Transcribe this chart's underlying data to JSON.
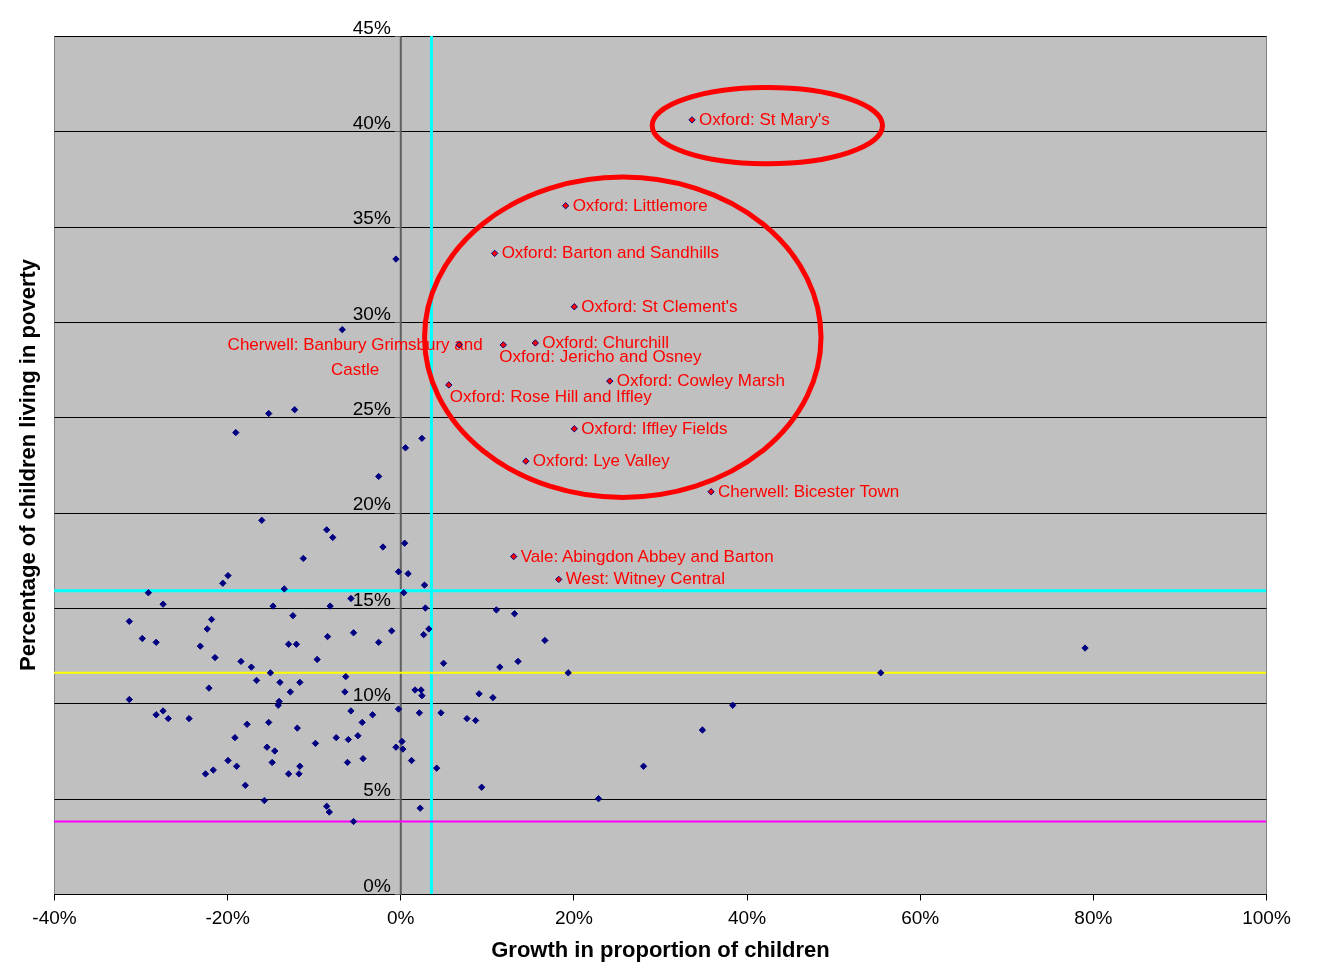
{
  "chart_data": {
    "type": "scatter",
    "xlabel": "Growth in proportion of children",
    "ylabel": "Percentage of children living in poverty",
    "xlim": [
      -40,
      100
    ],
    "ylim": [
      0,
      45
    ],
    "xticks": [
      {
        "value": -40,
        "label": "-40%"
      },
      {
        "value": -20,
        "label": "-20%"
      },
      {
        "value": 0,
        "label": "0%"
      },
      {
        "value": 20,
        "label": "20%"
      },
      {
        "value": 40,
        "label": "40%"
      },
      {
        "value": 60,
        "label": "60%"
      },
      {
        "value": 80,
        "label": "80%"
      },
      {
        "value": 100,
        "label": "100%"
      }
    ],
    "yticks": [
      {
        "value": 0,
        "label": "0%"
      },
      {
        "value": 5,
        "label": "5%"
      },
      {
        "value": 10,
        "label": "10%"
      },
      {
        "value": 15,
        "label": "15%"
      },
      {
        "value": 20,
        "label": "20%"
      },
      {
        "value": 25,
        "label": "25%"
      },
      {
        "value": 30,
        "label": "30%"
      },
      {
        "value": 35,
        "label": "35%"
      },
      {
        "value": 40,
        "label": "40%"
      },
      {
        "value": 45,
        "label": "45%"
      }
    ],
    "grid": "y",
    "marker": "diamond",
    "legend": false,
    "series": [
      {
        "color": "#000080",
        "x": [
          -31.3,
          -31.3,
          -29.8,
          -28.2,
          -29.1,
          -27.4,
          -28.2,
          -27.4,
          -26.8,
          -24.4,
          -23.1,
          -22.3,
          -21.8,
          -21.4,
          -22.1,
          -20.5,
          -19.9,
          -22.5,
          -21.6,
          -19.9,
          -19.1,
          -18.9,
          -19.0,
          -18.4,
          -17.7,
          -17.9,
          -17.2,
          -16.6,
          -16.0,
          -15.7,
          -15.2,
          -15.2,
          -15.4,
          -15.0,
          -14.7,
          -14.8,
          -14.5,
          -14.1,
          -14.0,
          -13.9,
          -13.4,
          -12.9,
          -12.9,
          -12.7,
          -12.4,
          -12.2,
          -12.0,
          -11.9,
          -11.6,
          -11.7,
          -11.6,
          -11.2,
          -9.8,
          -9.6,
          -8.5,
          -8.2,
          -8.5,
          -7.8,
          -8.4,
          -8.1,
          -7.4,
          -6.4,
          -6.3,
          -6.1,
          -6.0,
          -5.7,
          -5.7,
          -5.4,
          -5.4,
          -4.9,
          -4.4,
          -4.3,
          -3.2,
          -2.5,
          -2.5,
          -2.0,
          -1.0,
          -0.5,
          -0.2,
          -0.2,
          0.3,
          0.2,
          0.6,
          0.5,
          0.4,
          0.9,
          -0.5,
          -6.7,
          2.5,
          2.8,
          2.9,
          11.1,
          13.2,
          3.3,
          2.7,
          16.7,
          5.0,
          11.5,
          13.6,
          19.4,
          1.7,
          2.4,
          2.5,
          9.1,
          10.7,
          2.2,
          4.7,
          7.7,
          8.7,
          1.3,
          4.2,
          9.4,
          2.3,
          28.1,
          22.9,
          55.5,
          79.1,
          38.4,
          34.9
        ],
        "values": [
          14.3,
          10.2,
          13.4,
          13.2,
          15.8,
          15.2,
          9.4,
          9.6,
          9.2,
          9.2,
          13.0,
          13.9,
          14.4,
          12.4,
          10.8,
          16.3,
          16.7,
          6.3,
          6.5,
          7.0,
          8.2,
          6.7,
          24.2,
          12.2,
          8.9,
          5.7,
          11.9,
          11.2,
          19.6,
          4.9,
          25.2,
          9.0,
          7.7,
          11.6,
          15.1,
          6.9,
          7.5,
          9.9,
          10.1,
          11.1,
          16.0,
          6.3,
          13.1,
          10.6,
          14.6,
          25.4,
          13.1,
          8.7,
          11.1,
          6.3,
          6.7,
          17.6,
          7.9,
          12.3,
          4.6,
          4.3,
          19.1,
          18.7,
          13.5,
          15.1,
          8.2,
          10.6,
          11.4,
          6.9,
          8.1,
          15.5,
          9.6,
          13.7,
          3.8,
          8.3,
          9.0,
          7.1,
          9.4,
          21.9,
          13.2,
          18.2,
          13.8,
          7.7,
          16.9,
          9.7,
          7.6,
          8.0,
          23.4,
          18.4,
          15.8,
          16.8,
          33.3,
          29.6,
          23.9,
          16.2,
          15.0,
          14.9,
          14.7,
          13.9,
          13.6,
          13.3,
          12.1,
          11.9,
          12.2,
          11.6,
          10.7,
          10.7,
          10.4,
          10.5,
          10.3,
          9.5,
          9.5,
          9.2,
          9.1,
          7.0,
          6.6,
          5.6,
          4.5,
          6.7,
          5.0,
          11.6,
          12.9,
          9.9,
          8.6
        ]
      },
      {
        "color": "#ff0000",
        "x": [
          33.7,
          19.1,
          10.9,
          20.1,
          15.6,
          11.9,
          6.8,
          5.6,
          24.2,
          20.1,
          14.5,
          35.9,
          13.1,
          18.3
        ],
        "values": [
          40.6,
          36.1,
          33.6,
          30.8,
          28.9,
          28.8,
          28.8,
          26.7,
          26.9,
          24.4,
          22.7,
          21.1,
          17.7,
          16.5
        ]
      }
    ],
    "ref_lines": [
      {
        "axis": "x",
        "value": 3.6,
        "color": "#00ffff"
      },
      {
        "axis": "y",
        "value": 15.9,
        "color": "#00ffff"
      },
      {
        "axis": "y",
        "value": 11.6,
        "color": "#ffff00"
      },
      {
        "axis": "y",
        "value": 3.8,
        "color": "#ff00ff"
      }
    ],
    "annotations": [
      {
        "text": "Oxford: St Mary's",
        "x": 33.7,
        "y": 40.6
      },
      {
        "text": "Oxford: Littlemore",
        "x": 19.1,
        "y": 36.1
      },
      {
        "text": "Oxford: Barton and Sandhills",
        "x": 10.9,
        "y": 33.6
      },
      {
        "text": "Oxford: St Clement's",
        "x": 20.1,
        "y": 30.8
      },
      {
        "text": "Oxford: Churchill",
        "x": 15.6,
        "y": 28.9
      },
      {
        "text": "Oxford: Jericho and Osney",
        "x": 11.9,
        "y": 28.8
      },
      {
        "text": "Cherwell: Banbury Grimsbury and Castle",
        "x": 6.8,
        "y": 28.8
      },
      {
        "text": "Oxford: Rose Hill and Iffley",
        "x": 5.6,
        "y": 26.7
      },
      {
        "text": "Oxford: Cowley Marsh",
        "x": 24.2,
        "y": 26.9
      },
      {
        "text": "Oxford: Iffley Fields",
        "x": 20.1,
        "y": 24.4
      },
      {
        "text": "Oxford: Lye Valley",
        "x": 14.5,
        "y": 22.7
      },
      {
        "text": "Cherwell: Bicester Town",
        "x": 35.9,
        "y": 21.1
      },
      {
        "text": "Vale: Abingdon Abbey and Barton",
        "x": 13.1,
        "y": 17.7
      },
      {
        "text": "West: Witney Central",
        "x": 18.3,
        "y": 16.5
      }
    ]
  }
}
